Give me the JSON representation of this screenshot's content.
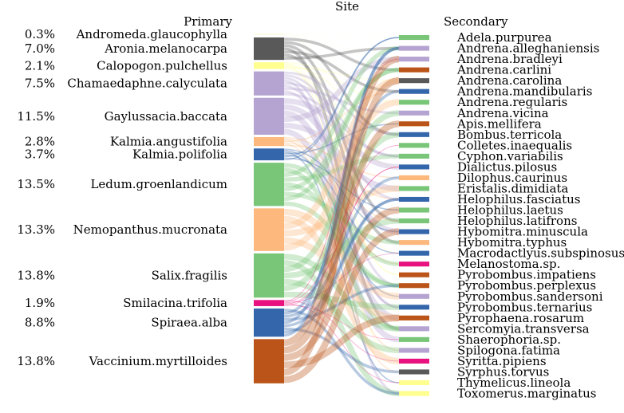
{
  "title": "Site",
  "left_header": "Primary",
  "right_header": "Secondary",
  "primary": [
    {
      "name": "Andromeda.glaucophylla",
      "pct": "0.3%",
      "share": 0.003,
      "color": "#fdfbe6"
    },
    {
      "name": "Aronia.melanocarpa",
      "pct": "7.0%",
      "share": 0.07,
      "color": "#595959"
    },
    {
      "name": "Calopogon.pulchellus",
      "pct": "2.1%",
      "share": 0.021,
      "color": "#ffff8f"
    },
    {
      "name": "Chamaedaphne.calyculata",
      "pct": "7.5%",
      "share": 0.075,
      "color": "#b5a3d1"
    },
    {
      "name": "Gaylussacia.baccata",
      "pct": "11.5%",
      "share": 0.115,
      "color": "#b5a3d1"
    },
    {
      "name": "Kalmia.angustifolia",
      "pct": "2.8%",
      "share": 0.028,
      "color": "#fdb97d"
    },
    {
      "name": "Kalmia.polifolia",
      "pct": "3.7%",
      "share": 0.037,
      "color": "#3466ac"
    },
    {
      "name": "Ledum.groenlandicum",
      "pct": "13.5%",
      "share": 0.135,
      "color": "#79c679"
    },
    {
      "name": "Nemopanthus.mucronata",
      "pct": "13.3%",
      "share": 0.133,
      "color": "#fdb97d"
    },
    {
      "name": "Salix.fragilis",
      "pct": "13.8%",
      "share": 0.138,
      "color": "#79c679"
    },
    {
      "name": "Smilacina.trifolia",
      "pct": "1.9%",
      "share": 0.019,
      "color": "#e7127f"
    },
    {
      "name": "Spiraea.alba",
      "pct": "8.8%",
      "share": 0.088,
      "color": "#3466ac"
    },
    {
      "name": "Vaccinium.myrtilloides",
      "pct": "13.8%",
      "share": 0.138,
      "color": "#ba5418"
    }
  ],
  "secondary": [
    {
      "name": "Adela.purpurea",
      "color": "#79c679"
    },
    {
      "name": "Andrena.alleghaniensis",
      "color": "#b5a3d1"
    },
    {
      "name": "Andrena.bradleyi",
      "color": "#b5a3d1"
    },
    {
      "name": "Andrena.carlini",
      "color": "#ba5418"
    },
    {
      "name": "Andrena.carolina",
      "color": "#595959"
    },
    {
      "name": "Andrena.mandibularis",
      "color": "#3466ac"
    },
    {
      "name": "Andrena.regularis",
      "color": "#79c679"
    },
    {
      "name": "Andrena.vicina",
      "color": "#b5a3d1"
    },
    {
      "name": "Apis.mellifera",
      "color": "#ba5418"
    },
    {
      "name": "Bombus.terricola",
      "color": "#3466ac"
    },
    {
      "name": "Colletes.inaequalis",
      "color": "#79c679"
    },
    {
      "name": "Cyphon.variabilis",
      "color": "#79c679"
    },
    {
      "name": "Dialictus.pilosus",
      "color": "#3466ac"
    },
    {
      "name": "Dilophus.caurinus",
      "color": "#fdb97d"
    },
    {
      "name": "Eristalis.dimidiata",
      "color": "#79c679"
    },
    {
      "name": "Helophilus.fasciatus",
      "color": "#3466ac"
    },
    {
      "name": "Helophilus.laetus",
      "color": "#79c679"
    },
    {
      "name": "Helophilus.latifrons",
      "color": "#79c679"
    },
    {
      "name": "Hybomitra.minuscula",
      "color": "#3466ac"
    },
    {
      "name": "Hybomitra.typhus",
      "color": "#fdb97d"
    },
    {
      "name": "Macrodactlyus.subspinosus",
      "color": "#3466ac"
    },
    {
      "name": "Melanostoma.sp.",
      "color": "#e7127f"
    },
    {
      "name": "Pyrobombus.impatiens",
      "color": "#ba5418"
    },
    {
      "name": "Pyrobombus.perplexus",
      "color": "#ba5418"
    },
    {
      "name": "Pyrobombus.sandersoni",
      "color": "#b5a3d1"
    },
    {
      "name": "Pyrobombus.ternarius",
      "color": "#3466ac"
    },
    {
      "name": "Pyrophaena.rosarum",
      "color": "#ba5418"
    },
    {
      "name": "Sercomyia.transversa",
      "color": "#b5a3d1"
    },
    {
      "name": "Shaerophoria.sp.",
      "color": "#79c679"
    },
    {
      "name": "Spilogona.fatima",
      "color": "#b5a3d1"
    },
    {
      "name": "Syritta.pipiens",
      "color": "#e7127f"
    },
    {
      "name": "Syrphus.torvus",
      "color": "#595959"
    },
    {
      "name": "Thymelicus.lineola",
      "color": "#ffff8f"
    },
    {
      "name": "Toxomerus.marginatus",
      "color": "#ffff8f"
    }
  ]
}
